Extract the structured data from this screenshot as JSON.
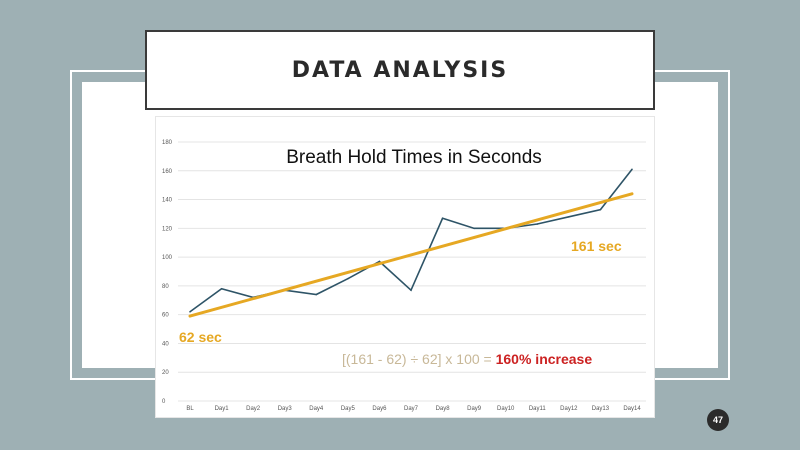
{
  "slide": {
    "title": "DATA ANALYSIS",
    "page_number": "47"
  },
  "colors": {
    "series": "#2e5467",
    "trendline": "#e6a823",
    "annotation_orange": "#e6a823",
    "formula_tan": "#c8b898",
    "formula_red": "#cc2222",
    "background": "#9eb0b4"
  },
  "chart_data": {
    "type": "line",
    "title": "Breath Hold Times in Seconds",
    "categories": [
      "BL",
      "Day1",
      "Day2",
      "Day3",
      "Day4",
      "Day5",
      "Day6",
      "Day7",
      "Day8",
      "Day9",
      "Day10",
      "Day11",
      "Day12",
      "Day13",
      "Day14"
    ],
    "series": [
      {
        "values": [
          62,
          78,
          72,
          77,
          74,
          85,
          97,
          77,
          127,
          120,
          120,
          123,
          128,
          133,
          161
        ]
      }
    ],
    "trendline": {
      "start": 59,
      "end": 144
    },
    "yticks": [
      0,
      20,
      40,
      60,
      80,
      100,
      120,
      140,
      160,
      180
    ],
    "ylim": [
      0,
      180
    ],
    "grid": true,
    "annotations": {
      "start_label": "62 sec",
      "end_label": "161 sec",
      "formula_text": "[(161 - 62) ÷ 62] x 100 = ",
      "formula_result": "160% increase"
    }
  }
}
